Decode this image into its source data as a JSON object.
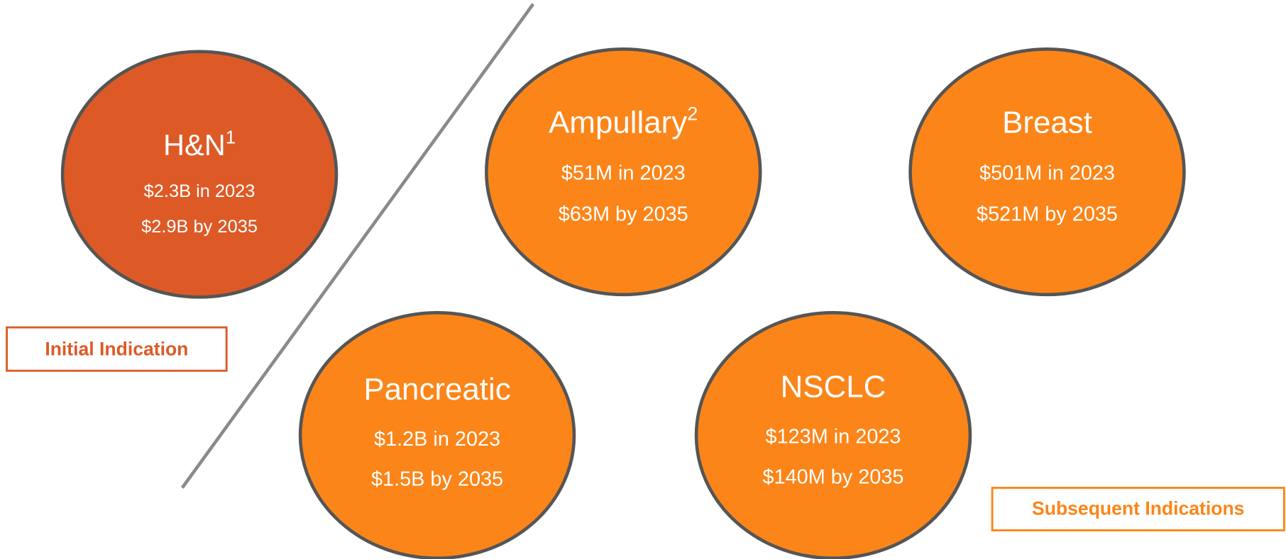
{
  "nodes": [
    {
      "label": "H&N",
      "note": "1",
      "lines": [
        "$2.3B in 2023",
        "$2.9B by 2035"
      ]
    },
    {
      "label": "Ampullary",
      "note": "2",
      "lines": [
        "$51M in 2023",
        "$63M by 2035"
      ]
    },
    {
      "label": "Breast",
      "lines": [
        "$501M in 2023",
        "$521M by 2035"
      ]
    },
    {
      "label": "Pancreatic",
      "lines": [
        "$1.2B in 2023",
        "$1.5B by 2035"
      ]
    },
    {
      "label": "NSCLC",
      "lines": [
        "$123M in 2023",
        "$140M by 2035"
      ]
    }
  ],
  "groups": [
    {
      "label": "Initial Indication"
    },
    {
      "label": "Subsequent Indications"
    }
  ]
}
